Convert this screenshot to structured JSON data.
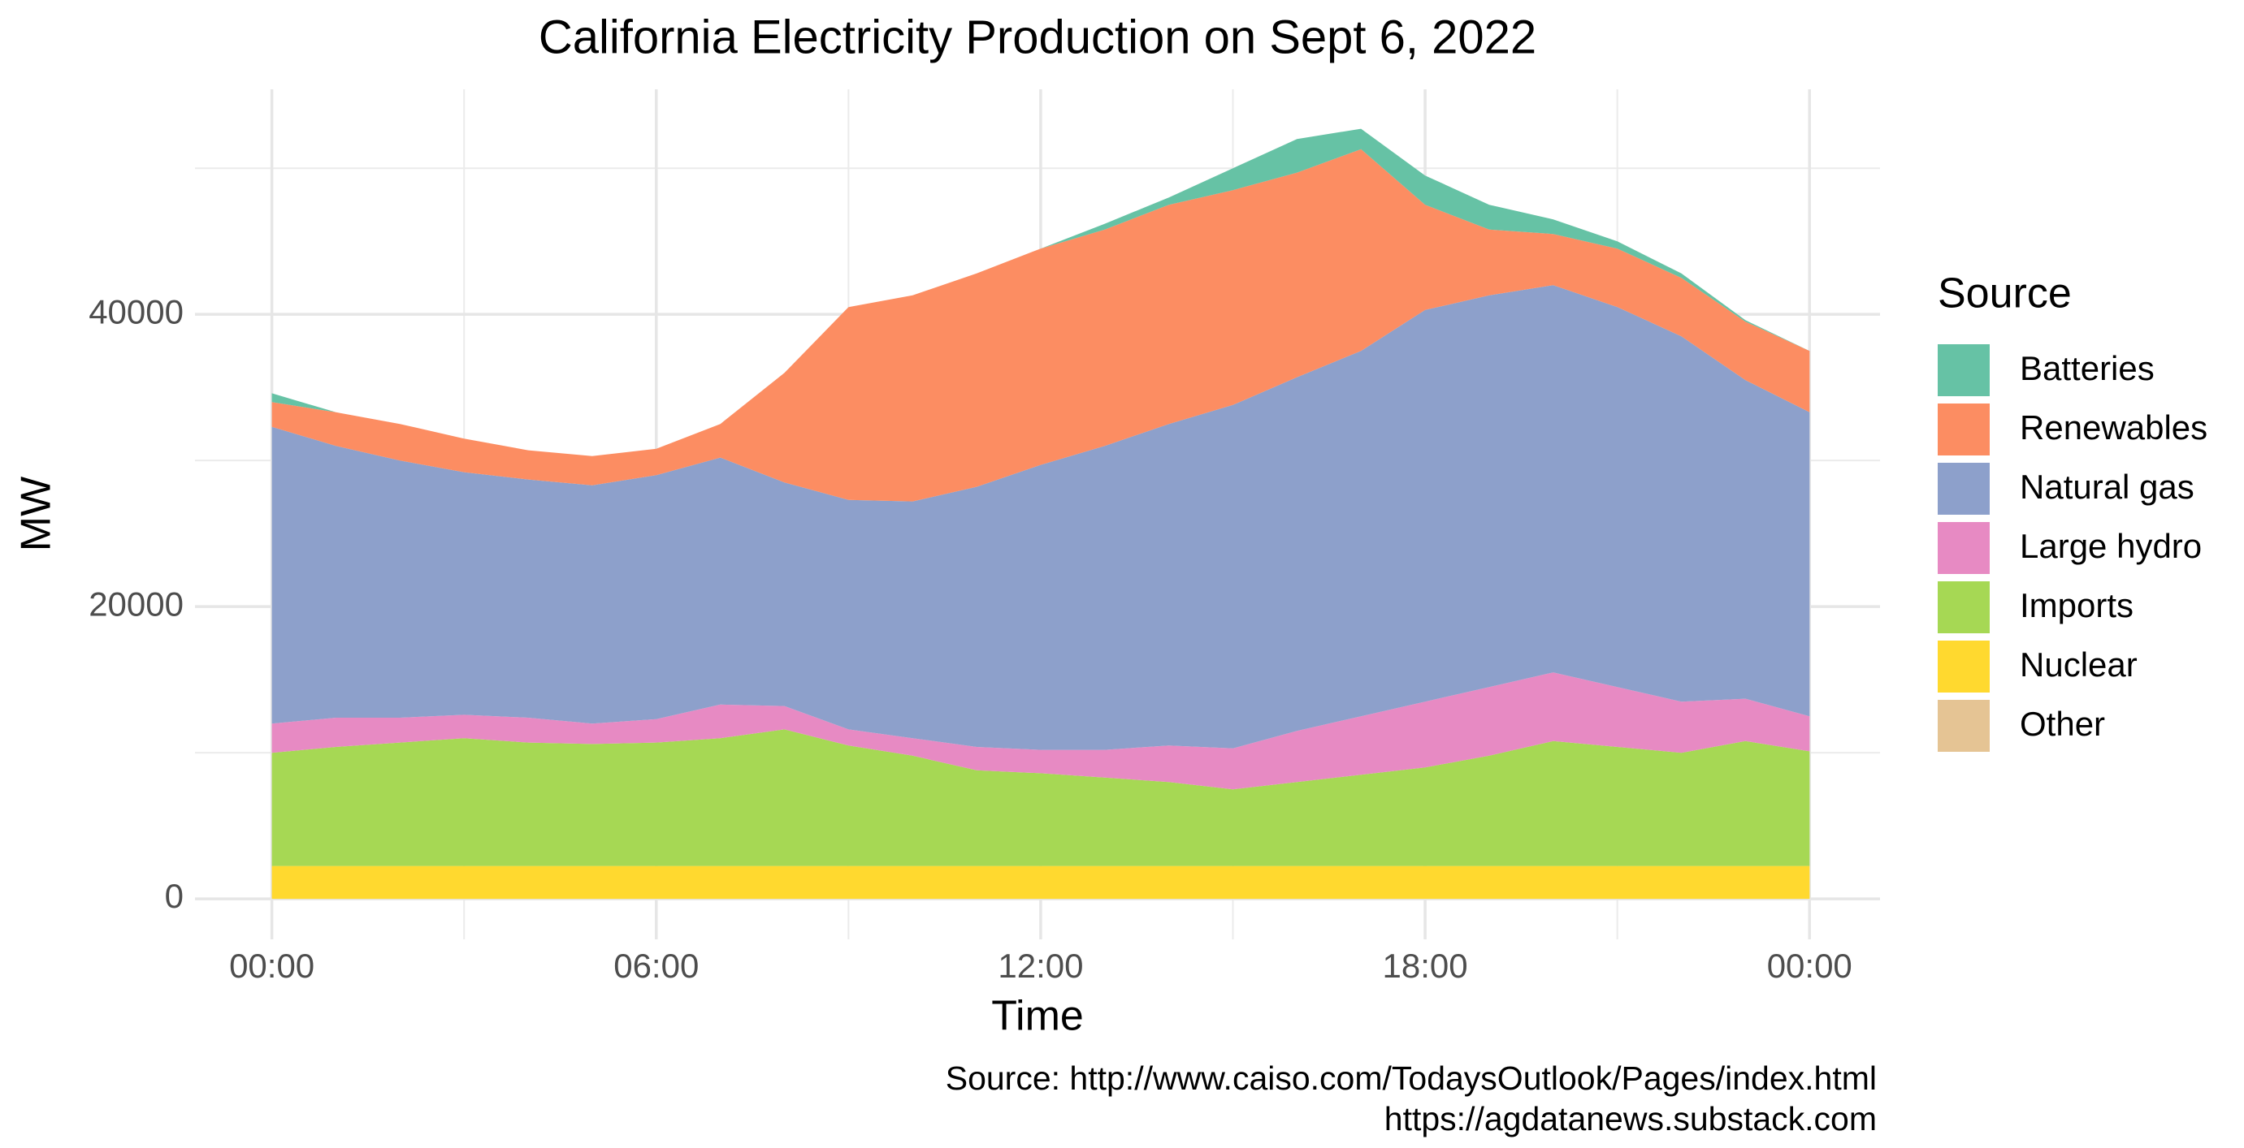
{
  "chart_data": {
    "type": "stacked_area",
    "title": "California Electricity Production on Sept 6, 2022",
    "x_label": "Time",
    "y_label": "MW",
    "legend_title": "Source",
    "legend_position": "right",
    "caption": [
      "Source: http://www.caiso.com/TodaysOutlook/Pages/index.html",
      "https://agdatanews.substack.com"
    ],
    "grid": true,
    "x": [
      0,
      1,
      2,
      3,
      4,
      5,
      6,
      7,
      8,
      9,
      10,
      11,
      12,
      13,
      14,
      15,
      16,
      17,
      18,
      19,
      20,
      21,
      22,
      23,
      24
    ],
    "xlim": [
      -1.2,
      25.1
    ],
    "xticks": [
      {
        "value": 0,
        "label": "00:00"
      },
      {
        "value": 6,
        "label": "06:00"
      },
      {
        "value": 12,
        "label": "12:00"
      },
      {
        "value": 18,
        "label": "18:00"
      },
      {
        "value": 24,
        "label": "00:00"
      }
    ],
    "x_minor_grid": [
      3,
      9,
      15,
      21
    ],
    "ylim": [
      -2770,
      55400
    ],
    "yticks": [
      0,
      20000,
      40000
    ],
    "y_minor_grid": [
      10000,
      30000,
      50000
    ],
    "series": [
      {
        "name": "Other",
        "color": "#e5c494",
        "values": [
          0,
          0,
          0,
          0,
          0,
          0,
          0,
          0,
          0,
          0,
          0,
          0,
          0,
          0,
          0,
          0,
          0,
          0,
          0,
          0,
          0,
          0,
          0,
          0,
          0
        ]
      },
      {
        "name": "Nuclear",
        "color": "#ffd92f",
        "values": [
          2250,
          2250,
          2250,
          2250,
          2250,
          2250,
          2250,
          2250,
          2250,
          2250,
          2250,
          2250,
          2250,
          2250,
          2250,
          2250,
          2250,
          2250,
          2250,
          2250,
          2250,
          2250,
          2250,
          2250,
          2250
        ]
      },
      {
        "name": "Imports",
        "color": "#a6d854",
        "values": [
          7750,
          8150,
          8450,
          8750,
          8450,
          8350,
          8450,
          8750,
          9350,
          8250,
          7550,
          6550,
          6350,
          6050,
          5750,
          5250,
          5750,
          6250,
          6750,
          7550,
          8550,
          8150,
          7750,
          8550,
          7850
        ]
      },
      {
        "name": "Large hydro",
        "color": "#e78ac3",
        "values": [
          2000,
          2000,
          1700,
          1600,
          1700,
          1400,
          1600,
          2300,
          1600,
          1100,
          1200,
          1600,
          1600,
          1900,
          2500,
          2800,
          3500,
          4000,
          4500,
          4700,
          4700,
          4100,
          3500,
          2900,
          2400
        ]
      },
      {
        "name": "Natural gas",
        "color": "#8da0cb",
        "values": [
          20300,
          18600,
          17600,
          16600,
          16300,
          16300,
          16700,
          16900,
          15300,
          15700,
          16200,
          17800,
          19500,
          20800,
          22000,
          23500,
          24200,
          25000,
          26800,
          26800,
          26500,
          26000,
          25000,
          21800,
          20800
        ]
      },
      {
        "name": "Renewables",
        "color": "#fc8d62",
        "values": [
          1700,
          2300,
          2500,
          2300,
          2000,
          2000,
          1800,
          2300,
          7500,
          13200,
          14100,
          14600,
          14800,
          14800,
          15000,
          14700,
          14000,
          13800,
          7200,
          4500,
          3500,
          4000,
          4000,
          4000,
          4200
        ]
      },
      {
        "name": "Batteries",
        "color": "#66c2a5",
        "values": [
          600,
          0,
          0,
          0,
          0,
          0,
          0,
          0,
          0,
          0,
          0,
          0,
          0,
          400,
          500,
          1500,
          2300,
          1400,
          2000,
          1700,
          1000,
          500,
          300,
          100,
          0
        ]
      }
    ]
  }
}
